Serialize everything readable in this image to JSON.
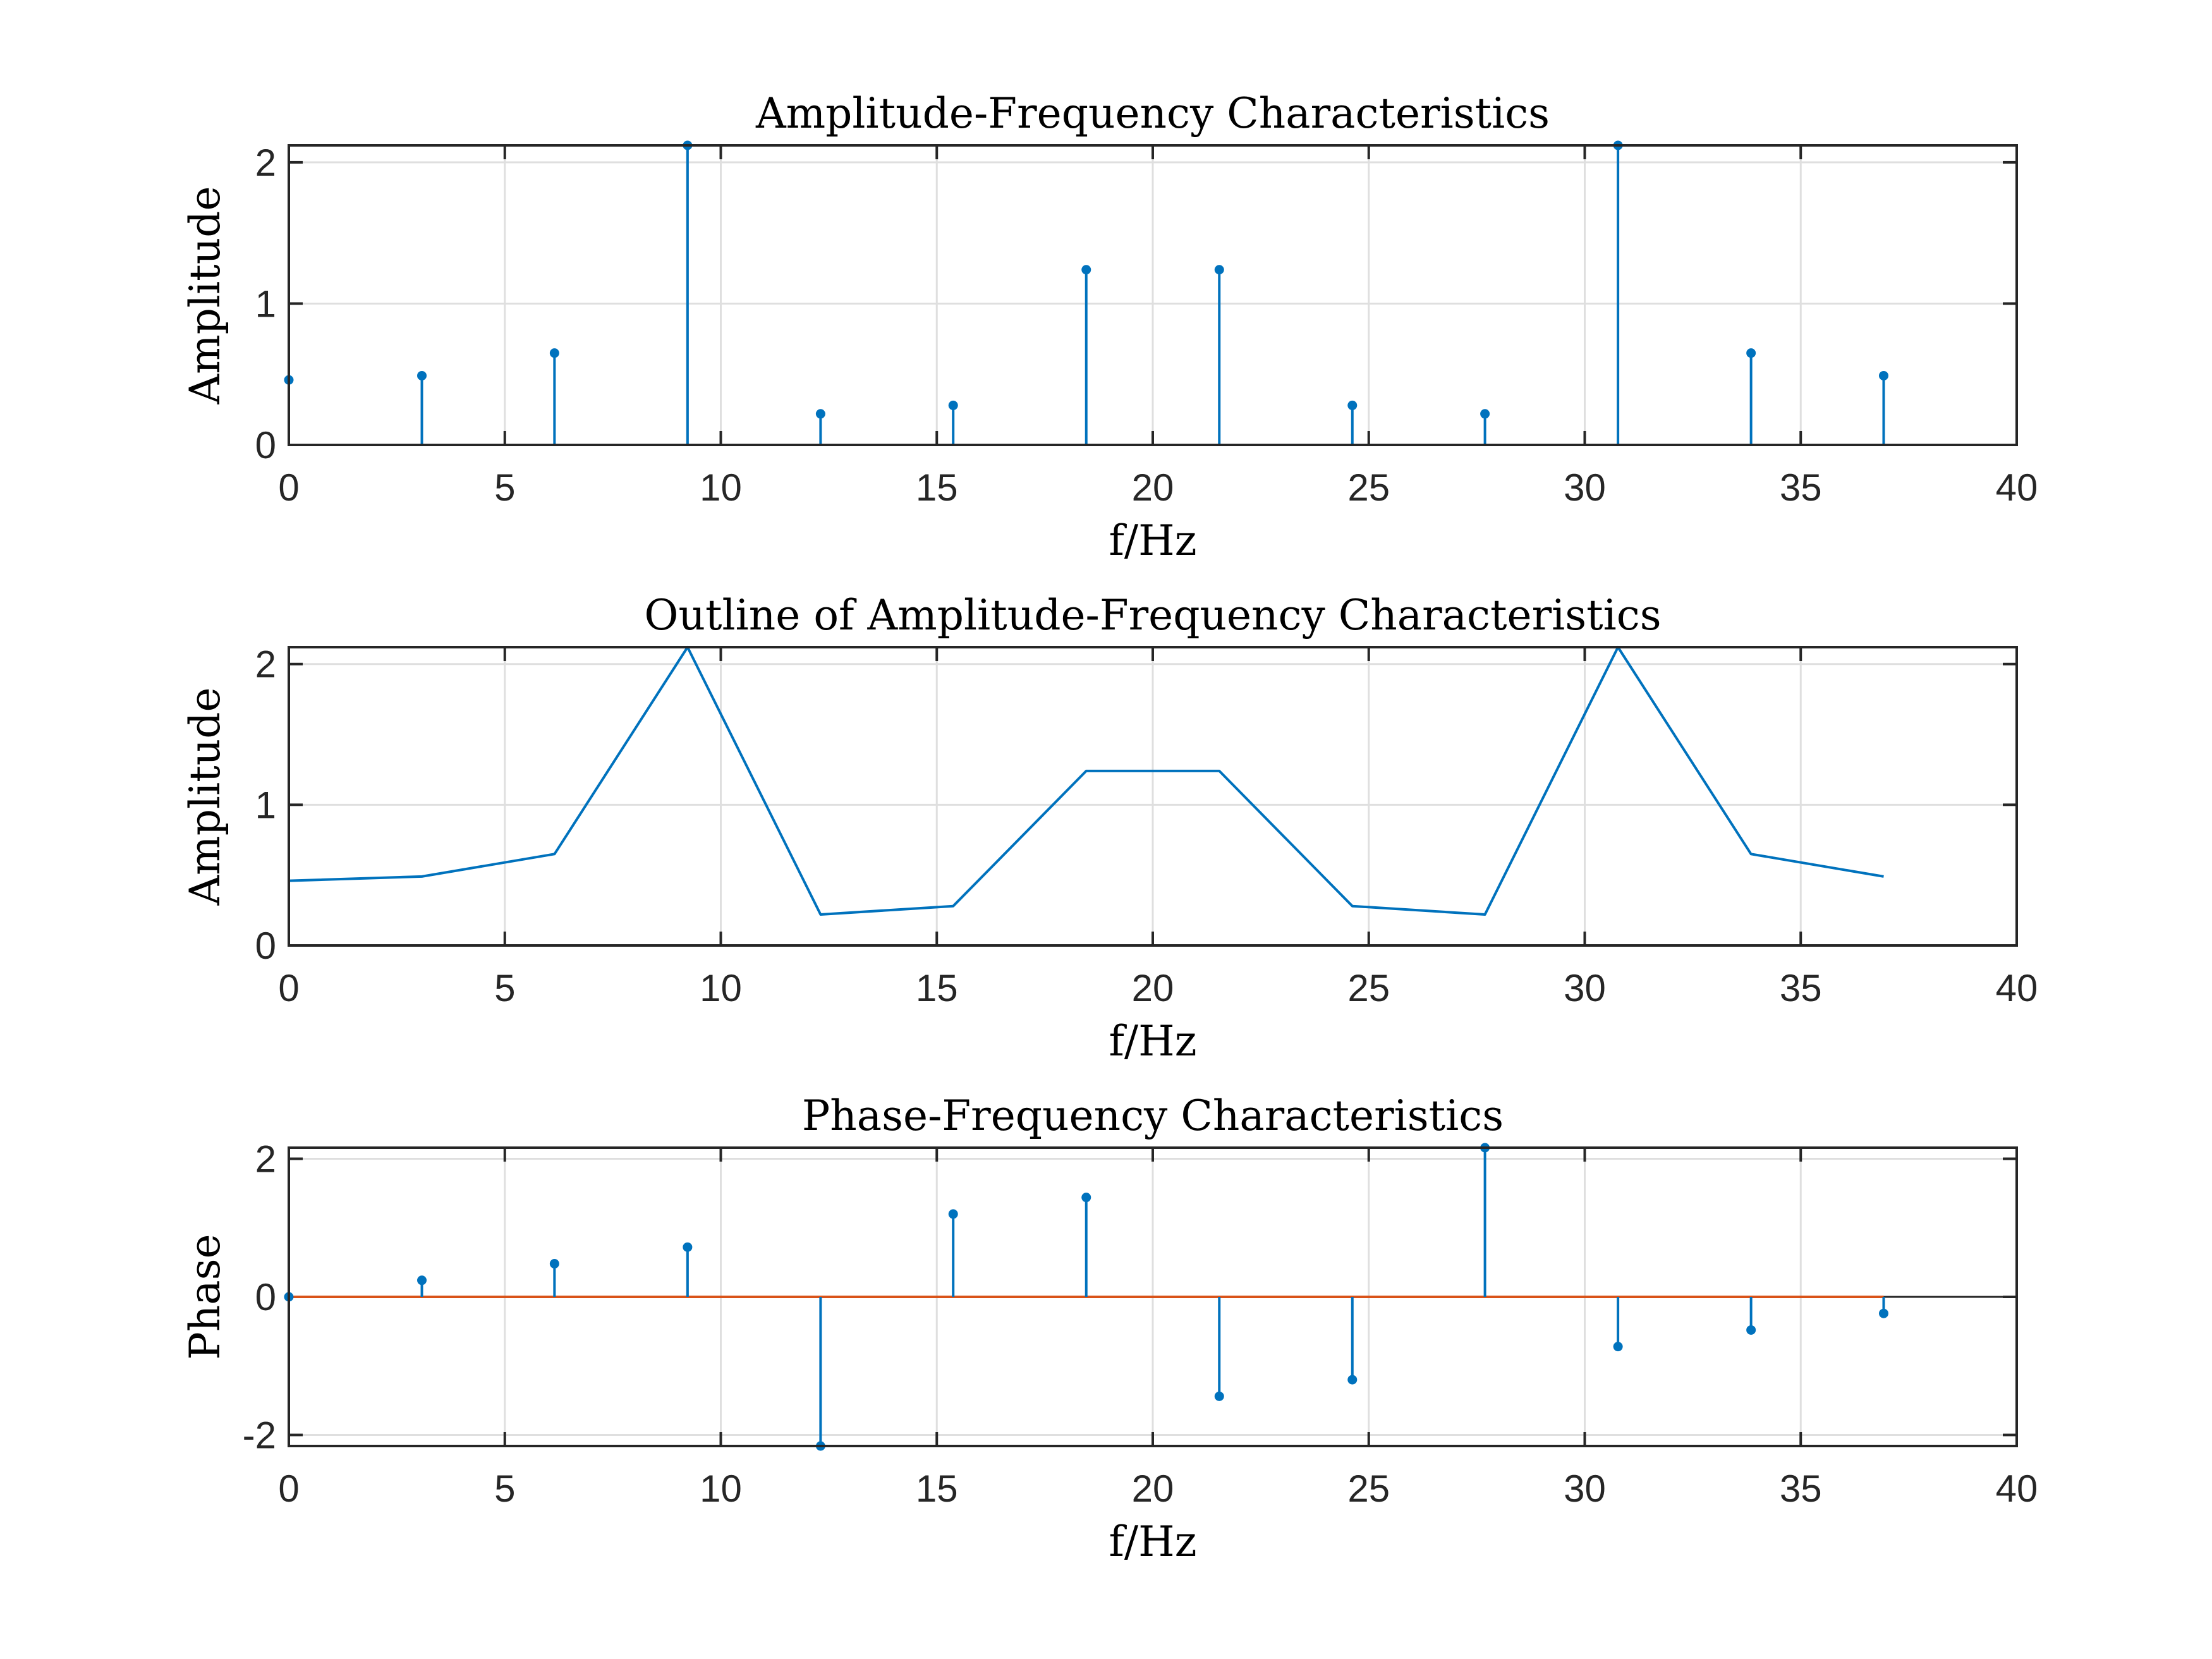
{
  "chart_data": [
    {
      "type": "stem",
      "title": "Amplitude-Frequency Characteristics",
      "xlabel": "f/Hz",
      "ylabel": "Amplitude",
      "xlim": [
        0,
        40
      ],
      "ylim": [
        0,
        2.12
      ],
      "xticks": [
        0,
        5,
        10,
        15,
        20,
        25,
        30,
        35,
        40
      ],
      "yticks": [
        0,
        1,
        2
      ],
      "xtick_labels": [
        "0",
        "5",
        "10",
        "15",
        "20",
        "25",
        "30",
        "35",
        "40"
      ],
      "ytick_labels": [
        "0",
        "1",
        "2"
      ],
      "grid": true,
      "color": "#0072BD",
      "x": [
        0,
        3.08,
        6.15,
        9.23,
        12.31,
        15.38,
        18.46,
        21.54,
        24.62,
        27.69,
        30.77,
        33.85,
        36.92
      ],
      "y": [
        0.46,
        0.49,
        0.65,
        2.12,
        0.22,
        0.28,
        1.24,
        1.24,
        0.28,
        0.22,
        2.12,
        0.65,
        0.49
      ]
    },
    {
      "type": "line",
      "title": "Outline of Amplitude-Frequency Characteristics",
      "xlabel": "f/Hz",
      "ylabel": "Amplitude",
      "xlim": [
        0,
        40
      ],
      "ylim": [
        0,
        2.12
      ],
      "xticks": [
        0,
        5,
        10,
        15,
        20,
        25,
        30,
        35,
        40
      ],
      "yticks": [
        0,
        1,
        2
      ],
      "xtick_labels": [
        "0",
        "5",
        "10",
        "15",
        "20",
        "25",
        "30",
        "35",
        "40"
      ],
      "ytick_labels": [
        "0",
        "1",
        "2"
      ],
      "grid": true,
      "color": "#0072BD",
      "x": [
        0,
        3.08,
        6.15,
        9.23,
        12.31,
        15.38,
        18.46,
        21.54,
        24.62,
        27.69,
        30.77,
        33.85,
        36.92
      ],
      "y": [
        0.46,
        0.49,
        0.65,
        2.12,
        0.22,
        0.28,
        1.24,
        1.24,
        0.28,
        0.22,
        2.12,
        0.65,
        0.49
      ]
    },
    {
      "type": "stem",
      "title": "Phase-Frequency Characteristics",
      "xlabel": "f/Hz",
      "ylabel": "Phase",
      "xlim": [
        0,
        40
      ],
      "ylim": [
        -2.16,
        2.16
      ],
      "xticks": [
        0,
        5,
        10,
        15,
        20,
        25,
        30,
        35,
        40
      ],
      "yticks": [
        -2,
        0,
        2
      ],
      "xtick_labels": [
        "0",
        "5",
        "10",
        "15",
        "20",
        "25",
        "30",
        "35",
        "40"
      ],
      "ytick_labels": [
        "-2",
        "0",
        "2"
      ],
      "grid": true,
      "color": "#0072BD",
      "baseline_color": "#D95319",
      "x": [
        0,
        3.08,
        6.15,
        9.23,
        12.31,
        15.38,
        18.46,
        21.54,
        24.62,
        27.69,
        30.77,
        33.85,
        36.92
      ],
      "y": [
        0,
        0.24,
        0.48,
        0.72,
        -2.16,
        1.2,
        1.44,
        -1.44,
        -1.2,
        2.16,
        -0.72,
        -0.48,
        -0.24
      ]
    }
  ]
}
